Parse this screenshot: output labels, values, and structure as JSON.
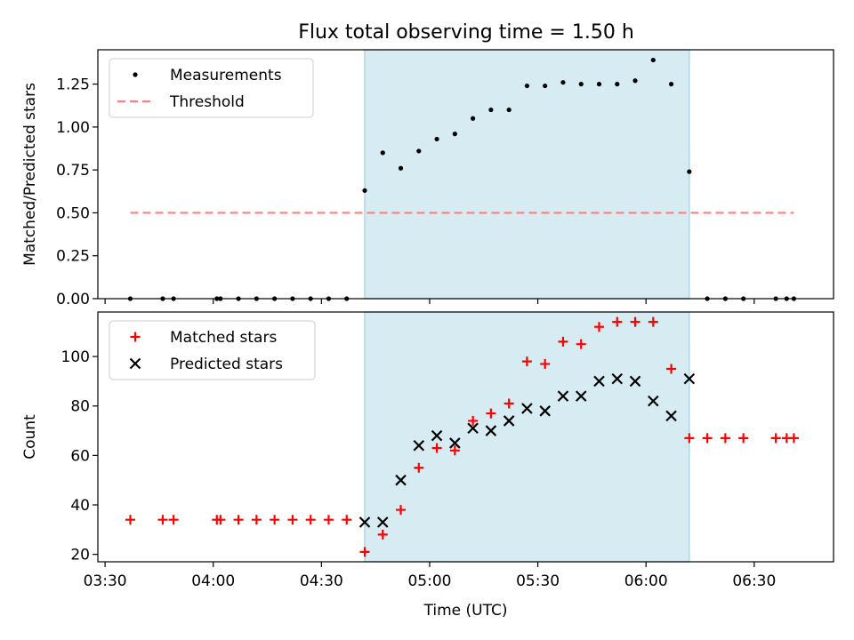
{
  "title": "Flux total observing time = 1.50 h",
  "colors": {
    "shade": "#add8e6",
    "threshold": "#ff7f7f",
    "matched": "#ff0000",
    "predicted": "#000000",
    "measurement": "#000000"
  },
  "chart_data": [
    {
      "type": "scatter",
      "panel": "top",
      "ylabel": "Matched/Predicted stars",
      "xlabel": "",
      "ylim": [
        0,
        1.45
      ],
      "yticks": [
        0.0,
        0.25,
        0.5,
        0.75,
        1.0,
        1.25
      ],
      "ytick_labels": [
        "0.00",
        "0.25",
        "0.50",
        "0.75",
        "1.00",
        "1.25"
      ],
      "xlim": [
        "03:28",
        "06:52"
      ],
      "legend_position": "top-left",
      "shaded_interval": [
        "04:42",
        "06:12"
      ],
      "series": [
        {
          "name": "Measurements",
          "marker": "dot",
          "x": [
            "03:37",
            "03:46",
            "03:49",
            "04:01",
            "04:02",
            "04:07",
            "04:12",
            "04:17",
            "04:22",
            "04:27",
            "04:32",
            "04:37",
            "04:42",
            "04:47",
            "04:52",
            "04:57",
            "05:02",
            "05:07",
            "05:12",
            "05:17",
            "05:22",
            "05:27",
            "05:32",
            "05:37",
            "05:42",
            "05:47",
            "05:52",
            "05:57",
            "06:02",
            "06:07",
            "06:12",
            "06:17",
            "06:22",
            "06:27",
            "06:36",
            "06:39",
            "06:41"
          ],
          "y": [
            0,
            0,
            0,
            0,
            0,
            0,
            0,
            0,
            0,
            0,
            0,
            0,
            0.63,
            0.85,
            0.76,
            0.86,
            0.93,
            0.96,
            1.05,
            1.1,
            1.1,
            1.24,
            1.24,
            1.26,
            1.25,
            1.25,
            1.25,
            1.27,
            1.39,
            1.25,
            0.74,
            0,
            0,
            0,
            0,
            0,
            0
          ]
        },
        {
          "name": "Threshold",
          "style": "dashed-line",
          "x": [
            "03:37",
            "06:41"
          ],
          "y": [
            0.5,
            0.5
          ]
        }
      ]
    },
    {
      "type": "scatter",
      "panel": "bottom",
      "ylabel": "Count",
      "xlabel": "Time (UTC)",
      "ylim": [
        17,
        118
      ],
      "yticks": [
        20,
        40,
        60,
        80,
        100
      ],
      "ytick_labels": [
        "20",
        "40",
        "60",
        "80",
        "100"
      ],
      "xlim": [
        "03:28",
        "06:52"
      ],
      "xticks": [
        "03:30",
        "04:00",
        "04:30",
        "05:00",
        "05:30",
        "06:00",
        "06:30"
      ],
      "xtick_labels": [
        "03:30",
        "04:00",
        "04:30",
        "05:00",
        "05:30",
        "06:00",
        "06:30"
      ],
      "legend_position": "top-left",
      "shaded_interval": [
        "04:42",
        "06:12"
      ],
      "series": [
        {
          "name": "Matched stars",
          "marker": "plus",
          "x": [
            "03:37",
            "03:46",
            "03:49",
            "04:01",
            "04:02",
            "04:07",
            "04:12",
            "04:17",
            "04:22",
            "04:27",
            "04:32",
            "04:37",
            "04:42",
            "04:47",
            "04:52",
            "04:57",
            "05:02",
            "05:07",
            "05:12",
            "05:17",
            "05:22",
            "05:27",
            "05:32",
            "05:37",
            "05:42",
            "05:47",
            "05:52",
            "05:57",
            "06:02",
            "06:07",
            "06:12",
            "06:17",
            "06:22",
            "06:27",
            "06:36",
            "06:39",
            "06:41"
          ],
          "y": [
            34,
            34,
            34,
            34,
            34,
            34,
            34,
            34,
            34,
            34,
            34,
            34,
            21,
            28,
            38,
            55,
            63,
            62,
            74,
            77,
            81,
            98,
            97,
            106,
            105,
            112,
            114,
            114,
            114,
            95,
            67,
            67,
            67,
            67,
            67,
            67,
            67
          ]
        },
        {
          "name": "Predicted stars",
          "marker": "x",
          "x": [
            "04:42",
            "04:47",
            "04:52",
            "04:57",
            "05:02",
            "05:07",
            "05:12",
            "05:17",
            "05:22",
            "05:27",
            "05:32",
            "05:37",
            "05:42",
            "05:47",
            "05:52",
            "05:57",
            "06:02",
            "06:07",
            "06:12"
          ],
          "y": [
            33,
            33,
            50,
            64,
            68,
            65,
            71,
            70,
            74,
            79,
            78,
            84,
            84,
            90,
            91,
            90,
            82,
            76,
            91
          ]
        }
      ]
    }
  ]
}
